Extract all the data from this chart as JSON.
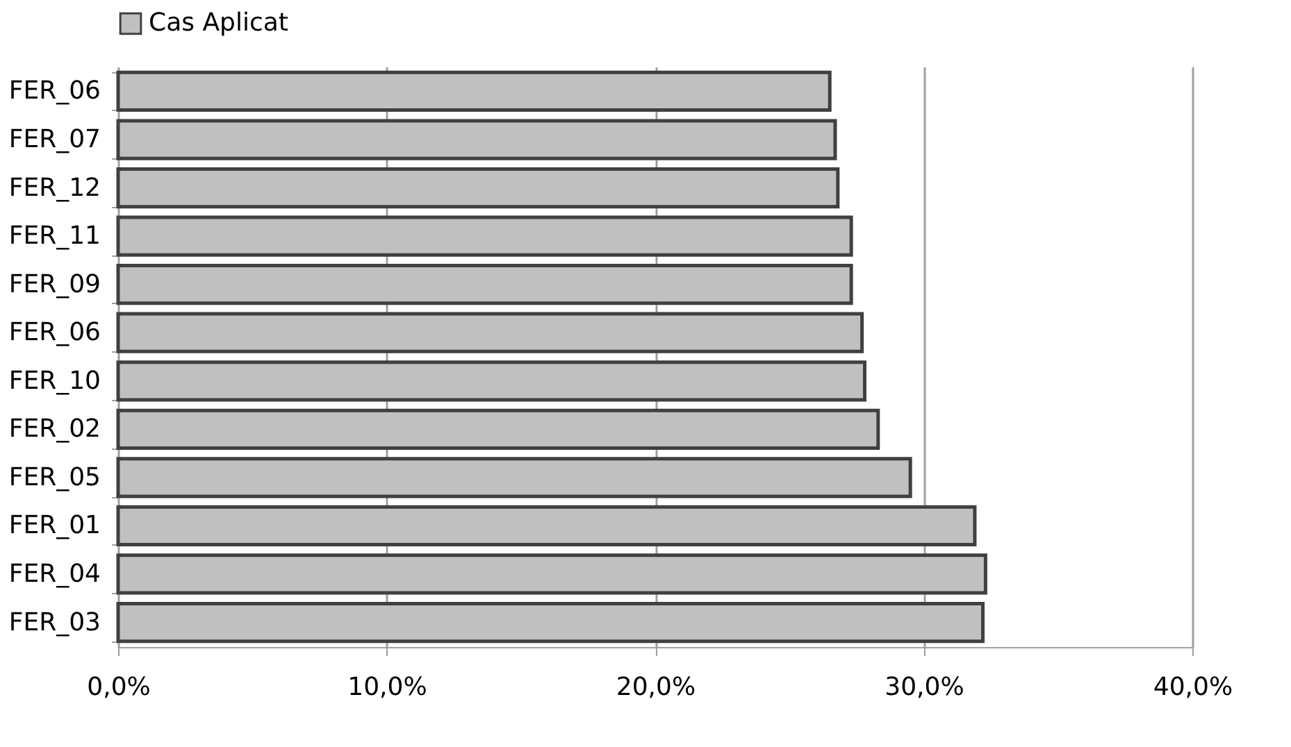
{
  "chart_data": {
    "type": "bar",
    "orientation": "horizontal",
    "categories": [
      "FER_06",
      "FER_07",
      "FER_12",
      "FER_11",
      "FER_09",
      "FER_06",
      "FER_10",
      "FER_02",
      "FER_05",
      "FER_01",
      "FER_04",
      "FER_03"
    ],
    "series": [
      {
        "name": "Cas Aplicat",
        "color": "#c0c0c0",
        "values": [
          26.5,
          26.7,
          26.8,
          27.3,
          27.3,
          27.7,
          27.8,
          28.3,
          29.5,
          31.9,
          32.3,
          32.2
        ]
      }
    ],
    "xlim": [
      0,
      40
    ],
    "xticks": [
      {
        "value": 0,
        "label": "0,0%"
      },
      {
        "value": 10,
        "label": "10,0%"
      },
      {
        "value": 20,
        "label": "20,0%"
      },
      {
        "value": 30,
        "label": "30,0%"
      },
      {
        "value": 40,
        "label": "40,0%"
      }
    ],
    "grid": "x",
    "legend": "top"
  }
}
